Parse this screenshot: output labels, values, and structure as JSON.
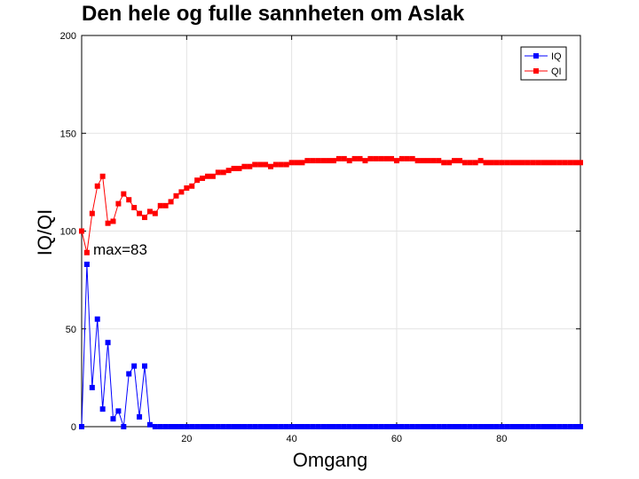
{
  "chart_data": {
    "type": "line",
    "title": "Den hele og fulle sannheten om Aslak",
    "xlabel": "Omgang",
    "ylabel": "IQ/QI",
    "xlim": [
      0,
      95
    ],
    "ylim": [
      0,
      200
    ],
    "xticks": [
      20,
      40,
      60,
      80
    ],
    "yticks": [
      0,
      50,
      100,
      150,
      200
    ],
    "grid": true,
    "legend_position": "top-right",
    "annotation": "max=83",
    "x": [
      0,
      1,
      2,
      3,
      4,
      5,
      6,
      7,
      8,
      9,
      10,
      11,
      12,
      13,
      14,
      15,
      16,
      17,
      18,
      19,
      20,
      21,
      22,
      23,
      24,
      25,
      26,
      27,
      28,
      29,
      30,
      31,
      32,
      33,
      34,
      35,
      36,
      37,
      38,
      39,
      40,
      41,
      42,
      43,
      44,
      45,
      46,
      47,
      48,
      49,
      50,
      51,
      52,
      53,
      54,
      55,
      56,
      57,
      58,
      59,
      60,
      61,
      62,
      63,
      64,
      65,
      66,
      67,
      68,
      69,
      70,
      71,
      72,
      73,
      74,
      75,
      76,
      77,
      78,
      79,
      80,
      81,
      82,
      83,
      84,
      85,
      86,
      87,
      88,
      89,
      90,
      91,
      92,
      93,
      94,
      95
    ],
    "series": [
      {
        "name": "IQ",
        "color": "#0000ff",
        "values": [
          0,
          83,
          20,
          55,
          9,
          43,
          4,
          8,
          0,
          27,
          31,
          5,
          31,
          1,
          0,
          0,
          0,
          0,
          0,
          0,
          0,
          0,
          0,
          0,
          0,
          0,
          0,
          0,
          0,
          0,
          0,
          0,
          0,
          0,
          0,
          0,
          0,
          0,
          0,
          0,
          0,
          0,
          0,
          0,
          0,
          0,
          0,
          0,
          0,
          0,
          0,
          0,
          0,
          0,
          0,
          0,
          0,
          0,
          0,
          0,
          0,
          0,
          0,
          0,
          0,
          0,
          0,
          0,
          0,
          0,
          0,
          0,
          0,
          0,
          0,
          0,
          0,
          0,
          0,
          0,
          0,
          0,
          0,
          0,
          0,
          0,
          0,
          0,
          0,
          0,
          0,
          0,
          0,
          0,
          0,
          0
        ]
      },
      {
        "name": "QI",
        "color": "#ff0000",
        "values": [
          100,
          89,
          109,
          123,
          128,
          104,
          105,
          114,
          119,
          116,
          112,
          109,
          107,
          110,
          109,
          113,
          113,
          115,
          118,
          120,
          122,
          123,
          126,
          127,
          128,
          128,
          130,
          130,
          131,
          132,
          132,
          133,
          133,
          134,
          134,
          134,
          133,
          134,
          134,
          134,
          135,
          135,
          135,
          136,
          136,
          136,
          136,
          136,
          136,
          137,
          137,
          136,
          137,
          137,
          136,
          137,
          137,
          137,
          137,
          137,
          136,
          137,
          137,
          137,
          136,
          136,
          136,
          136,
          136,
          135,
          135,
          136,
          136,
          135,
          135,
          135,
          136,
          135,
          135,
          135,
          135,
          135,
          135,
          135,
          135,
          135,
          135,
          135,
          135,
          135,
          135,
          135,
          135,
          135,
          135,
          135
        ]
      }
    ]
  }
}
